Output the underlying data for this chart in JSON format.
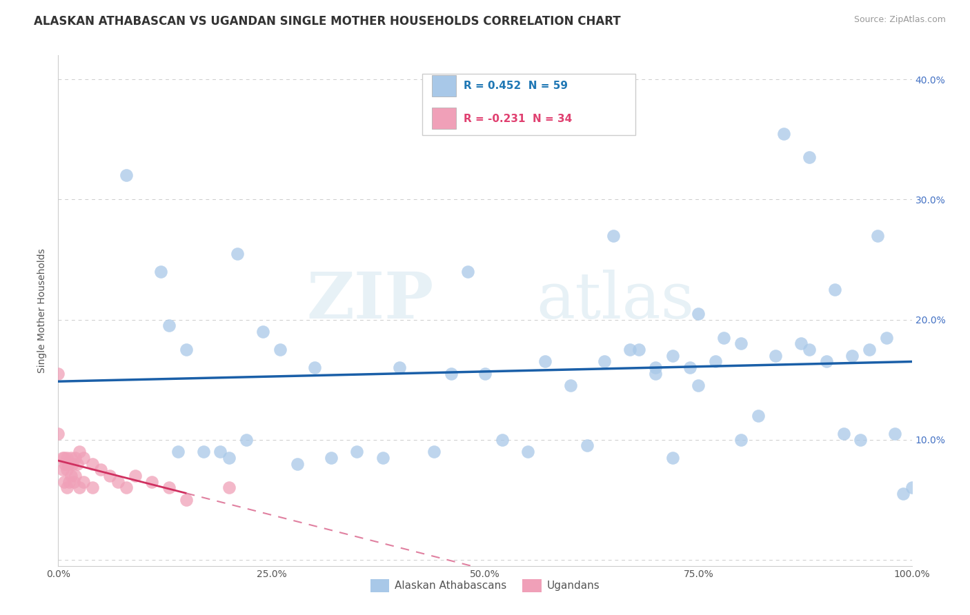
{
  "title": "ALASKAN ATHABASCAN VS UGANDAN SINGLE MOTHER HOUSEHOLDS CORRELATION CHART",
  "source": "Source: ZipAtlas.com",
  "ylabel": "Single Mother Households",
  "xlim": [
    0,
    1.0
  ],
  "ylim": [
    -0.005,
    0.42
  ],
  "xticks": [
    0.0,
    0.25,
    0.5,
    0.75,
    1.0
  ],
  "xtick_labels": [
    "0.0%",
    "25.0%",
    "50.0%",
    "75.0%",
    "100.0%"
  ],
  "yticks": [
    0.0,
    0.1,
    0.2,
    0.3,
    0.4
  ],
  "ytick_labels_left": [
    "",
    "",
    "",
    "",
    ""
  ],
  "ytick_labels_right": [
    "",
    "10.0%",
    "20.0%",
    "30.0%",
    "40.0%"
  ],
  "blue_scatter_x": [
    0.08,
    0.12,
    0.13,
    0.14,
    0.15,
    0.17,
    0.19,
    0.2,
    0.21,
    0.22,
    0.24,
    0.26,
    0.28,
    0.3,
    0.32,
    0.35,
    0.38,
    0.4,
    0.44,
    0.46,
    0.48,
    0.5,
    0.52,
    0.55,
    0.57,
    0.6,
    0.62,
    0.64,
    0.65,
    0.67,
    0.68,
    0.7,
    0.72,
    0.74,
    0.75,
    0.77,
    0.78,
    0.8,
    0.82,
    0.84,
    0.85,
    0.87,
    0.88,
    0.9,
    0.91,
    0.92,
    0.93,
    0.94,
    0.95,
    0.96,
    0.97,
    0.98,
    0.99,
    1.0,
    0.7,
    0.72,
    0.75,
    0.8,
    0.88
  ],
  "blue_scatter_y": [
    0.32,
    0.24,
    0.195,
    0.09,
    0.175,
    0.09,
    0.09,
    0.085,
    0.255,
    0.1,
    0.19,
    0.175,
    0.08,
    0.16,
    0.085,
    0.09,
    0.085,
    0.16,
    0.09,
    0.155,
    0.24,
    0.155,
    0.1,
    0.09,
    0.165,
    0.145,
    0.095,
    0.165,
    0.27,
    0.175,
    0.175,
    0.16,
    0.17,
    0.16,
    0.205,
    0.165,
    0.185,
    0.18,
    0.12,
    0.17,
    0.355,
    0.18,
    0.335,
    0.165,
    0.225,
    0.105,
    0.17,
    0.1,
    0.175,
    0.27,
    0.185,
    0.105,
    0.055,
    0.06,
    0.155,
    0.085,
    0.145,
    0.1,
    0.175
  ],
  "pink_scatter_x": [
    0.0,
    0.0,
    0.005,
    0.005,
    0.007,
    0.007,
    0.008,
    0.01,
    0.01,
    0.01,
    0.012,
    0.013,
    0.015,
    0.015,
    0.017,
    0.018,
    0.02,
    0.02,
    0.022,
    0.025,
    0.025,
    0.03,
    0.03,
    0.04,
    0.04,
    0.05,
    0.06,
    0.07,
    0.08,
    0.09,
    0.11,
    0.13,
    0.15,
    0.2
  ],
  "pink_scatter_y": [
    0.155,
    0.105,
    0.085,
    0.075,
    0.085,
    0.065,
    0.08,
    0.085,
    0.075,
    0.06,
    0.08,
    0.065,
    0.085,
    0.07,
    0.08,
    0.065,
    0.085,
    0.07,
    0.08,
    0.09,
    0.06,
    0.085,
    0.065,
    0.08,
    0.06,
    0.075,
    0.07,
    0.065,
    0.06,
    0.07,
    0.065,
    0.06,
    0.05,
    0.06
  ],
  "scatter_blue_color": "#a8c8e8",
  "scatter_pink_color": "#f0a0b8",
  "trend_blue_color": "#1a5fa8",
  "trend_pink_solid_color": "#d03060",
  "trend_pink_dash_color": "#e080a0",
  "background_color": "#ffffff",
  "grid_color": "#cccccc",
  "watermark_zip": "ZIP",
  "watermark_atlas": "atlas",
  "title_fontsize": 12,
  "axis_label_fontsize": 10,
  "tick_fontsize": 10,
  "right_tick_color": "#4472c4",
  "blue_r": 0.452,
  "blue_n": 59,
  "pink_r": -0.231,
  "pink_n": 34,
  "legend_blue_text_color": "#1f77b4",
  "legend_pink_text_color": "#e04070"
}
